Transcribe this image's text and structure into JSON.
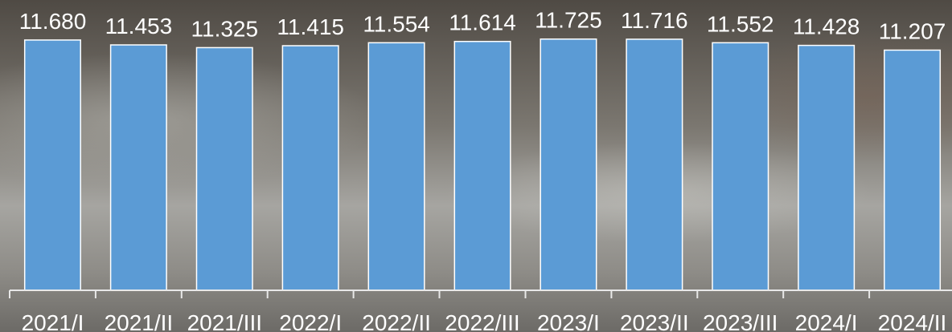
{
  "chart_data": {
    "type": "bar",
    "categories": [
      "2021/I",
      "2021/II",
      "2021/III",
      "2022/I",
      "2022/II",
      "2022/III",
      "2023/I",
      "2023/II",
      "2023/III",
      "2024/I",
      "2024/II"
    ],
    "values": [
      11.68,
      11.453,
      11.325,
      11.415,
      11.554,
      11.614,
      11.725,
      11.716,
      11.552,
      11.428,
      11.207
    ],
    "value_labels": [
      "11.680",
      "11.453",
      "11.325",
      "11.415",
      "11.554",
      "11.614",
      "11.725",
      "11.716",
      "11.552",
      "11.428",
      "11.207"
    ],
    "title": "",
    "xlabel": "",
    "ylabel": "",
    "ylim": [
      0,
      12.2
    ],
    "grid": false,
    "legend": "none",
    "bar_color": "#5b9bd5",
    "text_color": "#ffffff"
  }
}
